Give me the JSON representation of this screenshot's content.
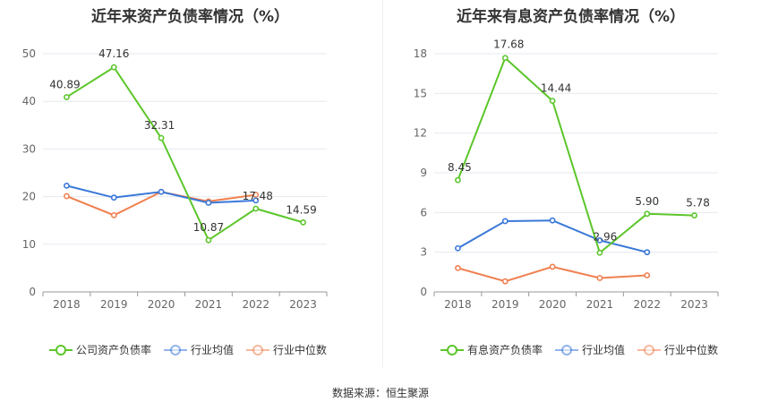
{
  "source_label": "数据来源：恒生聚源",
  "chart_data": [
    {
      "type": "line",
      "title": "近年来资产负债率情况（%）",
      "categories": [
        "2018",
        "2019",
        "2020",
        "2021",
        "2022",
        "2023"
      ],
      "ylim": [
        0,
        50
      ],
      "yticks": [
        0,
        10,
        20,
        30,
        40,
        50
      ],
      "ytick_labels": [
        "0",
        "10",
        "20",
        "30",
        "40",
        "50"
      ],
      "series": [
        {
          "name": "公司资产负债率",
          "color": "#5cc62a",
          "values": [
            40.89,
            47.16,
            32.31,
            10.87,
            17.48,
            14.59
          ],
          "labels": [
            "40.89",
            "47.16",
            "32.31",
            "10.87",
            "17.48",
            "14.59"
          ]
        },
        {
          "name": "行业均值",
          "color": "#3a78d8",
          "values": [
            22.3,
            19.8,
            21.0,
            18.7,
            19.2,
            null
          ]
        },
        {
          "name": "行业中位数",
          "color": "#f08050",
          "values": [
            20.1,
            16.1,
            21.0,
            19.0,
            20.4,
            null
          ]
        }
      ]
    },
    {
      "type": "line",
      "title": "近年来有息资产负债率情况（%）",
      "categories": [
        "2018",
        "2019",
        "2020",
        "2021",
        "2022",
        "2023"
      ],
      "ylim": [
        0,
        18
      ],
      "yticks": [
        0,
        3,
        6,
        9,
        12,
        15,
        18
      ],
      "ytick_labels": [
        "0",
        "3",
        "6",
        "9",
        "12",
        "15",
        "18"
      ],
      "series": [
        {
          "name": "有息资产负债率",
          "color": "#5cc62a",
          "values": [
            8.45,
            17.68,
            14.44,
            2.96,
            5.9,
            5.78
          ],
          "labels": [
            "8.45",
            "17.68",
            "14.44",
            "2.96",
            "5.90",
            "5.78"
          ]
        },
        {
          "name": "行业均值",
          "color": "#3a78d8",
          "values": [
            3.3,
            5.35,
            5.4,
            3.9,
            3.0,
            null
          ]
        },
        {
          "name": "行业中位数",
          "color": "#f08050",
          "values": [
            1.8,
            0.8,
            1.9,
            1.05,
            1.25,
            null
          ]
        }
      ]
    }
  ]
}
